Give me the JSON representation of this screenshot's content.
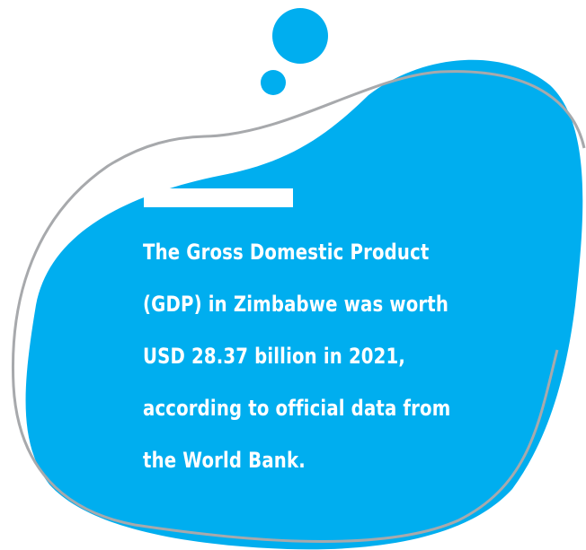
{
  "colors": {
    "blob": "#00aeef",
    "outline": "#a7a9ac",
    "text": "#ffffff",
    "background": "#ffffff"
  },
  "fact": {
    "lines": [
      "The Gross Domestic Product",
      "(GDP) in Zimbabwe was worth",
      "USD 28.37 billion in 2021,",
      "according to official data from",
      "the World Bank."
    ]
  }
}
